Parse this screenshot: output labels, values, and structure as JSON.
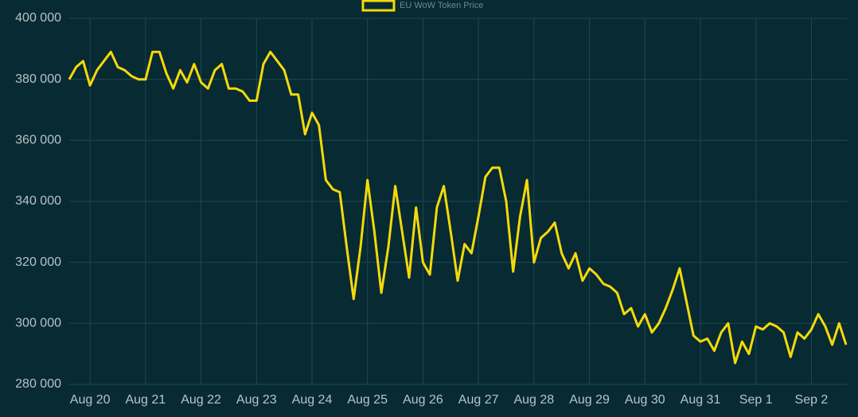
{
  "chart_data": {
    "type": "line",
    "legend": "top",
    "grid": true,
    "series": [
      {
        "name": "EU WoW Token Price",
        "color": "#f5d90a",
        "values": [
          380000,
          384000,
          386000,
          378000,
          383000,
          386000,
          389000,
          384000,
          383000,
          381000,
          380000,
          380000,
          389000,
          389000,
          382000,
          377000,
          383000,
          379000,
          385000,
          379000,
          377000,
          383000,
          385000,
          377000,
          377000,
          376000,
          373000,
          373000,
          385000,
          389000,
          386000,
          383000,
          375000,
          375000,
          362000,
          369000,
          365000,
          347000,
          344000,
          343000,
          325000,
          308000,
          325000,
          347000,
          330000,
          310000,
          325000,
          345000,
          330000,
          315000,
          338000,
          320000,
          316000,
          338000,
          345000,
          330000,
          314000,
          326000,
          323000,
          335000,
          348000,
          351000,
          351000,
          340000,
          317000,
          335000,
          347000,
          320000,
          328000,
          330000,
          333000,
          323000,
          318000,
          323000,
          314000,
          318000,
          316000,
          313000,
          312000,
          310000,
          303000,
          305000,
          299000,
          303000,
          297000,
          300000,
          305000,
          311000,
          318000,
          307000,
          296000,
          294000,
          295000,
          291000,
          297000,
          300000,
          287000,
          294000,
          290000,
          299000,
          298000,
          300000,
          299000,
          297000,
          289000,
          297000,
          295000,
          298000,
          303000,
          299000,
          293000,
          300000,
          293000
        ]
      }
    ],
    "categories": [
      null,
      null,
      null,
      "Aug 20",
      null,
      null,
      null,
      null,
      null,
      null,
      null,
      "Aug 21",
      null,
      null,
      null,
      null,
      null,
      null,
      null,
      "Aug 22",
      null,
      null,
      null,
      null,
      null,
      null,
      null,
      "Aug 23",
      null,
      null,
      null,
      null,
      null,
      null,
      null,
      "Aug 24",
      null,
      null,
      null,
      null,
      null,
      null,
      null,
      "Aug 25",
      null,
      null,
      null,
      null,
      null,
      null,
      null,
      "Aug 26",
      null,
      null,
      null,
      null,
      null,
      null,
      null,
      "Aug 27",
      null,
      null,
      null,
      null,
      null,
      null,
      null,
      "Aug 28",
      null,
      null,
      null,
      null,
      null,
      null,
      null,
      "Aug 29",
      null,
      null,
      null,
      null,
      null,
      null,
      null,
      "Aug 30",
      null,
      null,
      null,
      null,
      null,
      null,
      null,
      "Aug 31",
      null,
      null,
      null,
      null,
      null,
      null,
      null,
      "Sep 1",
      null,
      null,
      null,
      null,
      null,
      null,
      null,
      "Sep 2",
      null,
      null,
      null,
      null,
      null
    ],
    "ylim": [
      280000,
      400000
    ],
    "yticks": [
      {
        "value": 280000,
        "label": "280 000"
      },
      {
        "value": 300000,
        "label": "300 000"
      },
      {
        "value": 320000,
        "label": "320 000"
      },
      {
        "value": 340000,
        "label": "340 000"
      },
      {
        "value": 360000,
        "label": "360 000"
      },
      {
        "value": 380000,
        "label": "380 000"
      },
      {
        "value": 400000,
        "label": "400 000"
      }
    ]
  }
}
